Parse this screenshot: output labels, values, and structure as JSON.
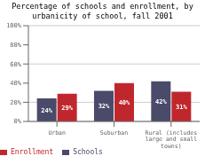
{
  "chart_data": {
    "type": "bar",
    "title": "Percentage of schools and enrollment, by\nurbanicity of school, fall 2001",
    "categories": [
      "Urban",
      "Suburban",
      "Rural (includes\nlarge and small\ntowns)"
    ],
    "series": [
      {
        "name": "Schools",
        "color": "#4a4a6a",
        "values": [
          24,
          32,
          42
        ],
        "value_labels": [
          "24%",
          "32%",
          "42%"
        ]
      },
      {
        "name": "Enrollment",
        "color": "#c0272d",
        "values": [
          29,
          40,
          31
        ],
        "value_labels": [
          "29%",
          "40%",
          "31%"
        ]
      }
    ],
    "ylim": [
      0,
      100
    ],
    "yticks": [
      {
        "value": 0,
        "label": "0%"
      },
      {
        "value": 20,
        "label": "20%"
      },
      {
        "value": 40,
        "label": "40%"
      },
      {
        "value": 60,
        "label": "60%"
      },
      {
        "value": 80,
        "label": "80%"
      },
      {
        "value": 100,
        "label": "100%"
      }
    ],
    "grid": true,
    "data_labels": true,
    "legend": "lower left"
  }
}
